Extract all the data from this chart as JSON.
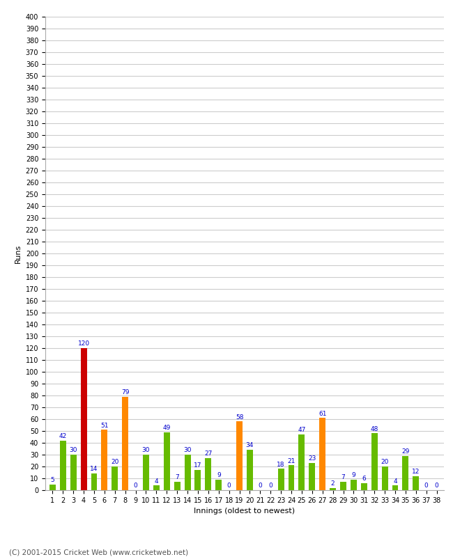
{
  "xlabel": "Innings (oldest to newest)",
  "ylabel": "Runs",
  "ylim": [
    0,
    400
  ],
  "footer": "(C) 2001-2015 Cricket Web (www.cricketweb.net)",
  "innings": [
    1,
    2,
    3,
    4,
    5,
    6,
    7,
    8,
    9,
    10,
    11,
    12,
    13,
    14,
    15,
    16,
    17,
    18,
    19,
    20,
    21,
    22,
    23,
    24,
    25,
    26,
    27,
    28,
    29,
    30,
    31,
    32,
    33,
    34,
    35,
    36,
    37,
    38
  ],
  "values": [
    5,
    42,
    30,
    120,
    14,
    51,
    20,
    79,
    0,
    30,
    4,
    49,
    7,
    30,
    17,
    27,
    9,
    0,
    58,
    34,
    0,
    0,
    18,
    21,
    47,
    23,
    61,
    2,
    7,
    9,
    6,
    48,
    20,
    4,
    29,
    12,
    0,
    0
  ],
  "colors": [
    "#66bb00",
    "#66bb00",
    "#66bb00",
    "#cc0000",
    "#66bb00",
    "#ff8800",
    "#66bb00",
    "#ff8800",
    "#66bb00",
    "#66bb00",
    "#66bb00",
    "#66bb00",
    "#66bb00",
    "#66bb00",
    "#66bb00",
    "#66bb00",
    "#66bb00",
    "#66bb00",
    "#ff8800",
    "#66bb00",
    "#66bb00",
    "#66bb00",
    "#66bb00",
    "#66bb00",
    "#66bb00",
    "#66bb00",
    "#ff8800",
    "#66bb00",
    "#66bb00",
    "#66bb00",
    "#66bb00",
    "#66bb00",
    "#66bb00",
    "#66bb00",
    "#66bb00",
    "#66bb00",
    "#66bb00",
    "#66bb00"
  ],
  "value_color": "#0000cc",
  "bg_color": "#ffffff",
  "grid_color": "#cccccc",
  "bar_width": 0.6,
  "label_fontsize": 6.5,
  "tick_fontsize": 7,
  "xlabel_fontsize": 8,
  "ylabel_fontsize": 8,
  "footer_fontsize": 7.5
}
